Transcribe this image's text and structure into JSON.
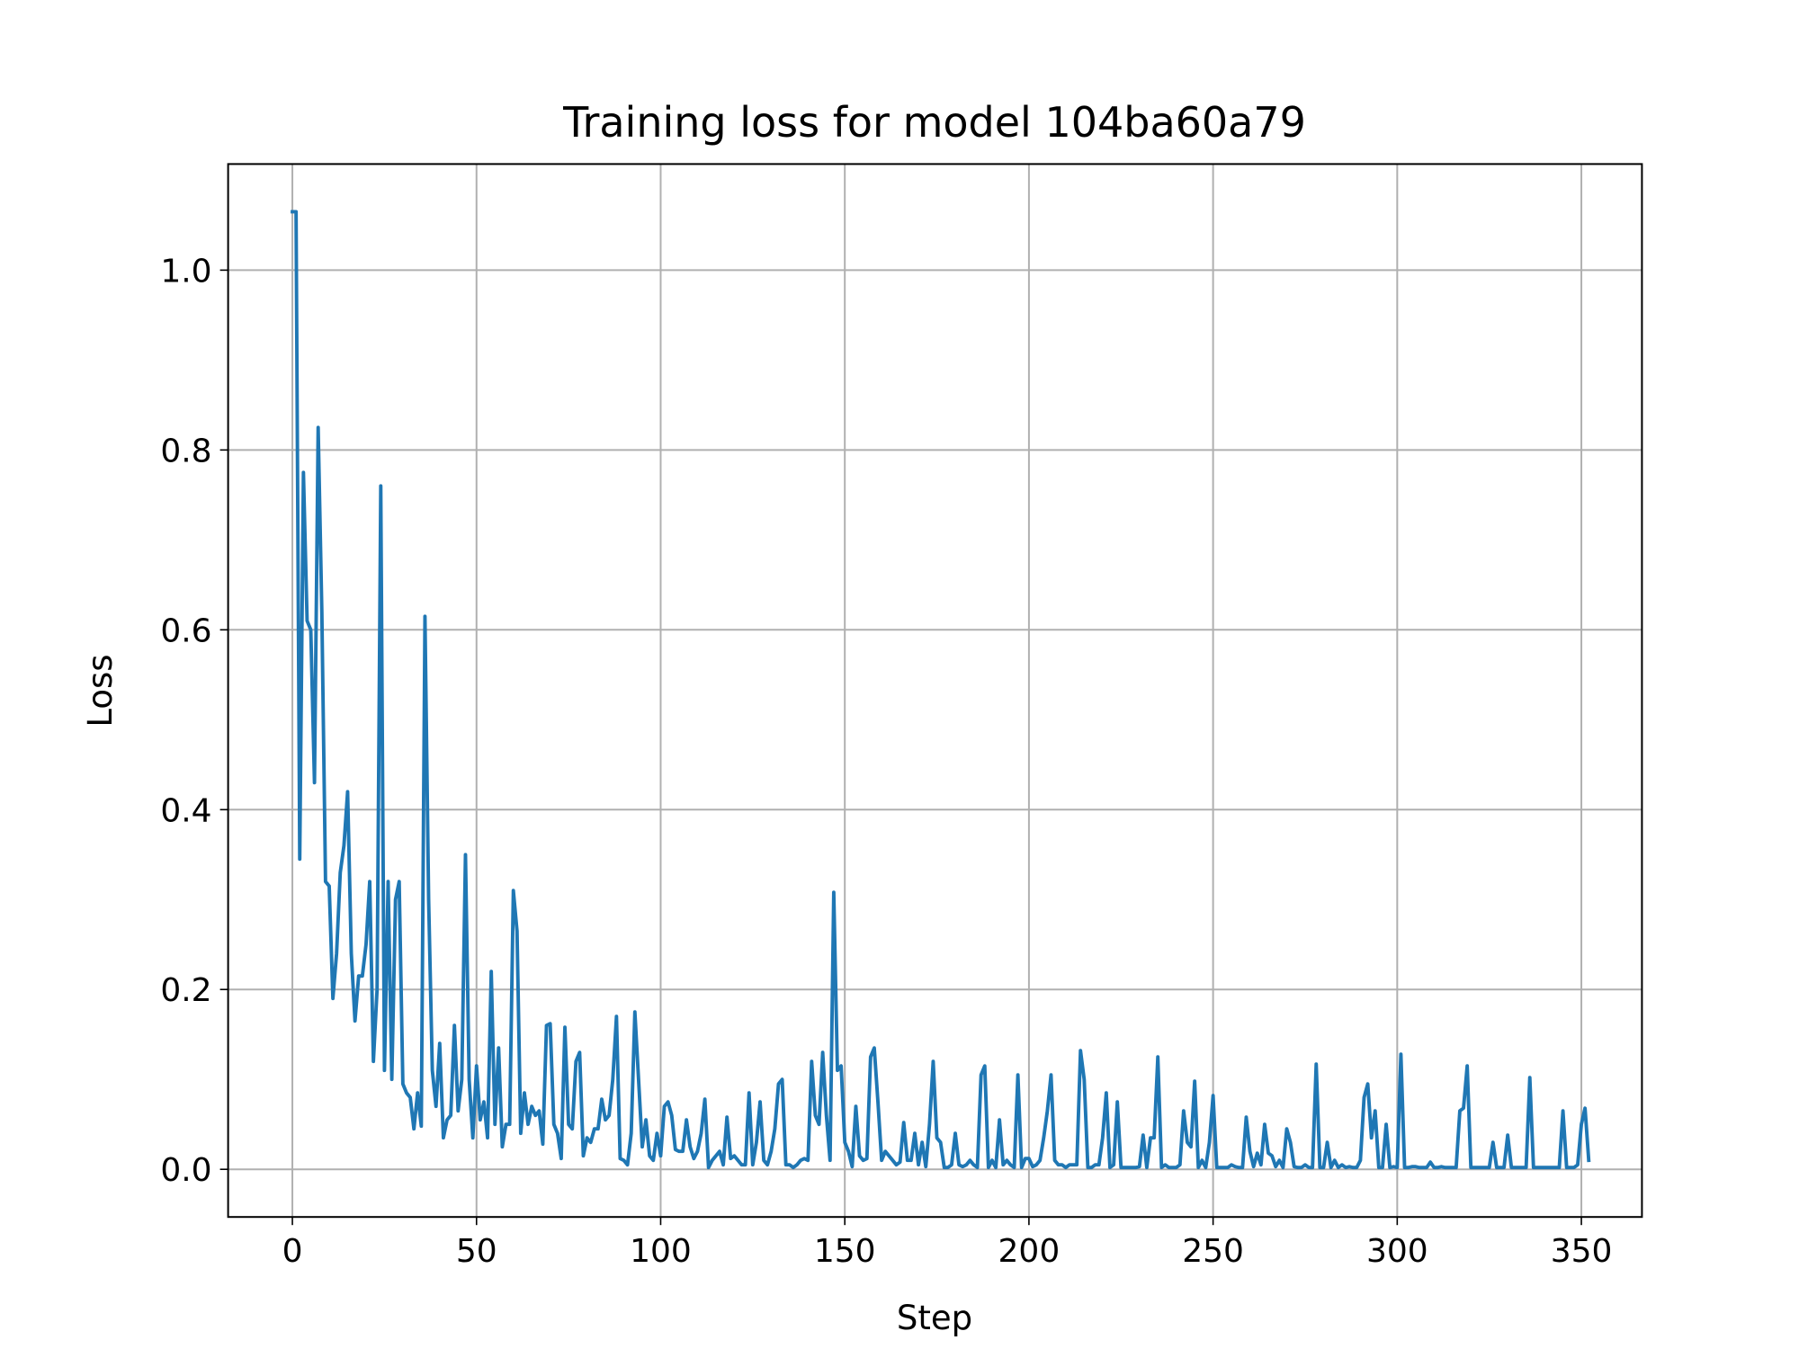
{
  "chart_data": {
    "type": "line",
    "title": "Training loss for model 104ba60a79",
    "x_label": "Step",
    "y_label": "Loss",
    "color": "#1f77b4",
    "grid": true,
    "xlim": [
      -17.45,
      366.45
    ],
    "ylim": [
      -0.053,
      1.118
    ],
    "xticks": [
      0,
      50,
      100,
      150,
      200,
      250,
      300,
      350
    ],
    "yticks": [
      {
        "value": 0,
        "label": "0.0"
      },
      0.2,
      0.4,
      0.6,
      0.8,
      {
        "value": 1,
        "label": "1.0"
      }
    ],
    "values": [
      1.065,
      1.065,
      0.345,
      0.775,
      0.61,
      0.6,
      0.43,
      0.825,
      0.62,
      0.32,
      0.315,
      0.19,
      0.24,
      0.33,
      0.36,
      0.42,
      0.24,
      0.165,
      0.215,
      0.215,
      0.25,
      0.32,
      0.12,
      0.2,
      0.76,
      0.11,
      0.32,
      0.1,
      0.3,
      0.32,
      0.095,
      0.085,
      0.08,
      0.045,
      0.085,
      0.048,
      0.615,
      0.3,
      0.11,
      0.07,
      0.14,
      0.035,
      0.055,
      0.06,
      0.16,
      0.065,
      0.1,
      0.35,
      0.1,
      0.035,
      0.115,
      0.055,
      0.075,
      0.035,
      0.22,
      0.05,
      0.135,
      0.025,
      0.05,
      0.05,
      0.31,
      0.265,
      0.04,
      0.085,
      0.05,
      0.07,
      0.06,
      0.065,
      0.028,
      0.16,
      0.162,
      0.05,
      0.04,
      0.012,
      0.158,
      0.05,
      0.045,
      0.12,
      0.13,
      0.015,
      0.035,
      0.03,
      0.045,
      0.045,
      0.078,
      0.055,
      0.06,
      0.1,
      0.17,
      0.012,
      0.01,
      0.005,
      0.04,
      0.175,
      0.1,
      0.025,
      0.055,
      0.015,
      0.01,
      0.04,
      0.015,
      0.07,
      0.075,
      0.06,
      0.022,
      0.02,
      0.02,
      0.055,
      0.025,
      0.012,
      0.02,
      0.04,
      0.078,
      0.002,
      0.01,
      0.015,
      0.02,
      0.005,
      0.058,
      0.012,
      0.015,
      0.01,
      0.005,
      0.005,
      0.085,
      0.005,
      0.03,
      0.075,
      0.01,
      0.005,
      0.02,
      0.045,
      0.095,
      0.1,
      0.005,
      0.005,
      0.002,
      0.005,
      0.01,
      0.012,
      0.01,
      0.12,
      0.06,
      0.05,
      0.13,
      0.06,
      0.01,
      0.308,
      0.11,
      0.115,
      0.03,
      0.02,
      0.003,
      0.07,
      0.015,
      0.01,
      0.012,
      0.125,
      0.135,
      0.075,
      0.01,
      0.02,
      0.015,
      0.01,
      0.005,
      0.008,
      0.052,
      0.01,
      0.01,
      0.04,
      0.005,
      0.03,
      0.003,
      0.05,
      0.12,
      0.035,
      0.03,
      0.002,
      0.002,
      0.005,
      0.04,
      0.005,
      0.003,
      0.005,
      0.01,
      0.005,
      0.002,
      0.105,
      0.115,
      0.002,
      0.01,
      0.002,
      0.055,
      0.005,
      0.01,
      0.005,
      0.002,
      0.105,
      0.002,
      0.012,
      0.012,
      0.003,
      0.005,
      0.01,
      0.035,
      0.065,
      0.105,
      0.01,
      0.005,
      0.005,
      0.002,
      0.005,
      0.005,
      0.005,
      0.132,
      0.1,
      0.002,
      0.002,
      0.005,
      0.005,
      0.035,
      0.085,
      0.002,
      0.005,
      0.075,
      0.002,
      0.002,
      0.002,
      0.002,
      0.002,
      0.003,
      0.038,
      0.002,
      0.035,
      0.035,
      0.125,
      0.002,
      0.005,
      0.002,
      0.002,
      0.002,
      0.005,
      0.065,
      0.03,
      0.025,
      0.098,
      0.002,
      0.01,
      0.002,
      0.03,
      0.082,
      0.002,
      0.002,
      0.002,
      0.002,
      0.005,
      0.003,
      0.002,
      0.002,
      0.058,
      0.02,
      0.003,
      0.018,
      0.005,
      0.05,
      0.018,
      0.015,
      0.003,
      0.01,
      0.002,
      0.045,
      0.03,
      0.003,
      0.002,
      0.002,
      0.005,
      0.002,
      0.002,
      0.117,
      0.002,
      0.002,
      0.03,
      0.002,
      0.01,
      0.002,
      0.005,
      0.002,
      0.003,
      0.002,
      0.002,
      0.01,
      0.08,
      0.095,
      0.035,
      0.065,
      0.002,
      0.002,
      0.05,
      0.002,
      0.003,
      0.002,
      0.128,
      0.002,
      0.002,
      0.003,
      0.003,
      0.002,
      0.002,
      0.002,
      0.008,
      0.002,
      0.002,
      0.003,
      0.002,
      0.002,
      0.002,
      0.002,
      0.065,
      0.068,
      0.115,
      0.002,
      0.002,
      0.002,
      0.002,
      0.002,
      0.002,
      0.03,
      0.002,
      0.002,
      0.002,
      0.038,
      0.002,
      0.002,
      0.002,
      0.002,
      0.002,
      0.102,
      0.002,
      0.002,
      0.002,
      0.002,
      0.002,
      0.002,
      0.002,
      0.002,
      0.065,
      0.002,
      0.002,
      0.002,
      0.005,
      0.05,
      0.068,
      0.01
    ]
  }
}
